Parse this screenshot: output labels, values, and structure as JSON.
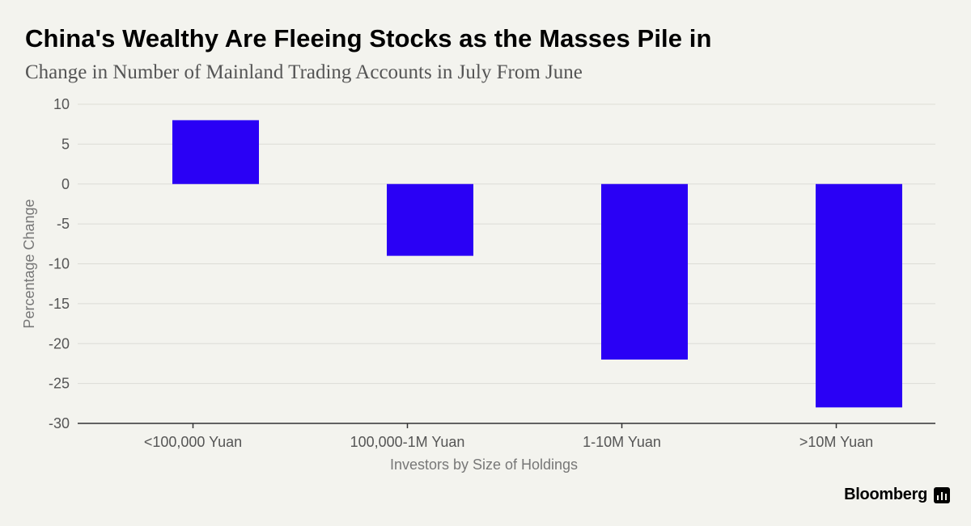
{
  "header": {
    "title": "China's Wealthy Are Fleeing Stocks as the Masses Pile in",
    "subtitle": "Change in Number of Mainland Trading Accounts in July From June"
  },
  "footer": {
    "brand": "Bloomberg"
  },
  "colors": {
    "bar": "#2a00f5",
    "grid": "#dcdcd6",
    "axis": "#333333",
    "tick_text": "#555555",
    "background": "#f3f3ee"
  },
  "chart_data": {
    "type": "bar",
    "title": "China's Wealthy Are Fleeing Stocks as the Masses Pile in",
    "subtitle": "Change in Number of Mainland Trading Accounts in July From June",
    "categories": [
      "<100,000 Yuan",
      "100,000-1M Yuan",
      "1-10M Yuan",
      ">10M Yuan"
    ],
    "values": [
      8,
      -9,
      -22,
      -28
    ],
    "xlabel": "Investors by Size of Holdings",
    "ylabel": "Percentage Change",
    "ylim": [
      -30,
      10
    ],
    "yticks": [
      10,
      5,
      0,
      -5,
      -10,
      -15,
      -20,
      -25,
      -30
    ],
    "grid": true,
    "legend": "none"
  }
}
